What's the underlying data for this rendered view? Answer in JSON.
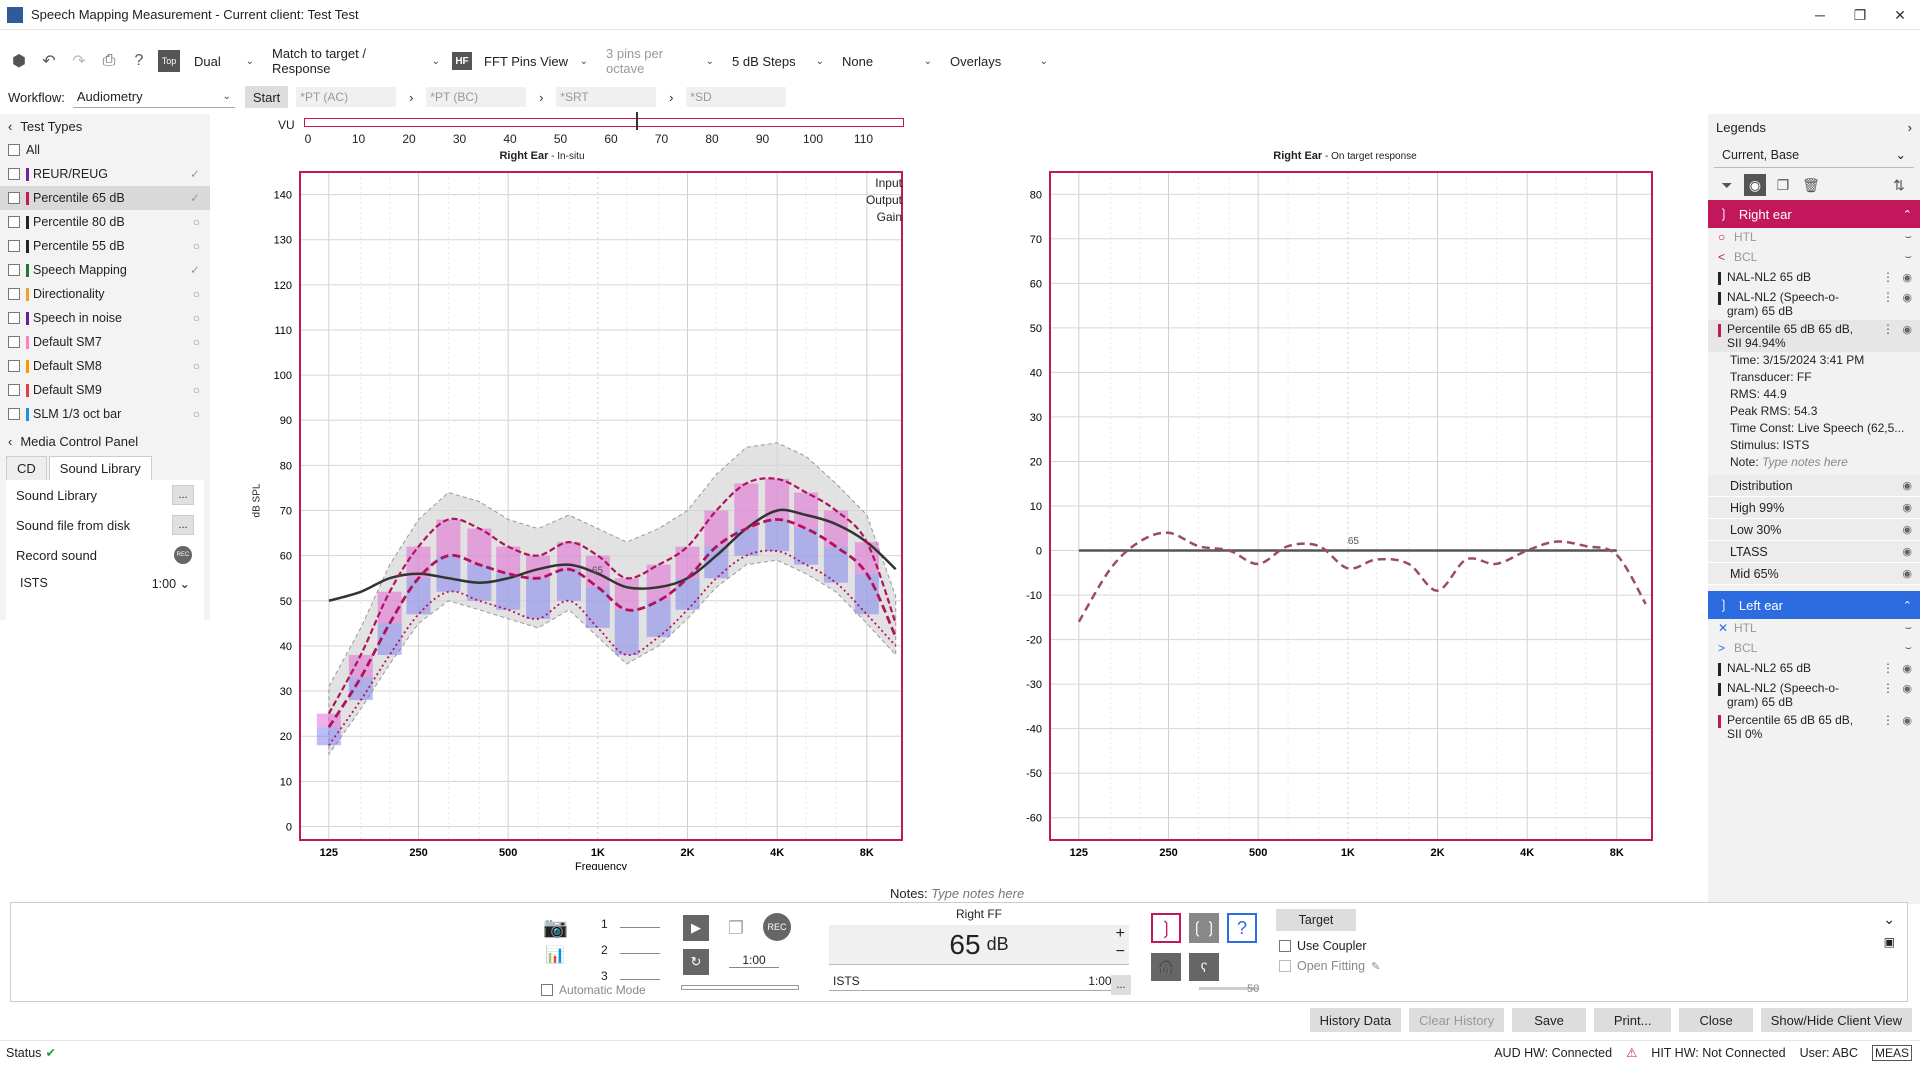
{
  "window": {
    "title": "Speech Mapping Measurement - Current client: Test Test"
  },
  "toolbar": {
    "mode": "Dual",
    "match": "Match to target / Response",
    "hf": "HF",
    "view": "FFT Pins View",
    "pins": "3 pins per octave",
    "steps": "5 dB Steps",
    "none": "None",
    "overlays": "Overlays"
  },
  "workflow": {
    "label": "Workflow:",
    "value": "Audiometry",
    "start": "Start",
    "steps": [
      "*PT (AC)",
      "*PT (BC)",
      "*SRT",
      "*SD"
    ]
  },
  "tests": {
    "header": "Test Types",
    "all": "All",
    "items": [
      {
        "label": "REUR/REUG",
        "color": "#7b1fa2",
        "status": "✓"
      },
      {
        "label": "Percentile 65 dB",
        "color": "#c2185b",
        "status": "✓"
      },
      {
        "label": "Percentile 80 dB",
        "color": "#222222",
        "status": "○"
      },
      {
        "label": "Percentile 55 dB",
        "color": "#222222",
        "status": "○"
      },
      {
        "label": "Speech Mapping",
        "color": "#1b7a3a",
        "status": "✓"
      },
      {
        "label": "Directionality",
        "color": "#f0a030",
        "status": "○"
      },
      {
        "label": "Speech in noise",
        "color": "#6a1b9a",
        "status": "○"
      },
      {
        "label": "Default SM7",
        "color": "#ff80c0",
        "status": "○"
      },
      {
        "label": "Default SM8",
        "color": "#ff9900",
        "status": "○"
      },
      {
        "label": "Default SM9",
        "color": "#e04040",
        "status": "○"
      },
      {
        "label": "SLM 1/3 oct bar",
        "color": "#2090e0",
        "status": "○"
      }
    ]
  },
  "media": {
    "header": "Media Control Panel",
    "tab_cd": "CD",
    "tab_lib": "Sound Library",
    "rows": [
      {
        "label": "Sound Library",
        "btn": "..."
      },
      {
        "label": "Sound file from disk",
        "btn": "..."
      },
      {
        "label": "Record sound",
        "btn": "REC"
      }
    ],
    "signal": "ISTS",
    "time": "1:00"
  },
  "vu": {
    "label": "VU",
    "ticks": [
      "0",
      "10",
      "20",
      "30",
      "40",
      "50",
      "60",
      "70",
      "80",
      "90",
      "100",
      "110"
    ],
    "level": 65
  },
  "left_chart": {
    "title_bold": "Right Ear",
    "title_rest": " - In-situ",
    "ylabel": "dB SPL",
    "xlabel": "Frequency",
    "legend": [
      "Input",
      "Output",
      "Gain"
    ],
    "yticks": [
      "140",
      "130",
      "120",
      "110",
      "100",
      "90",
      "80",
      "70",
      "60",
      "50",
      "40",
      "30",
      "20",
      "10",
      "0"
    ],
    "xticks": [
      "125",
      "250",
      "500",
      "1K",
      "2K",
      "4K",
      "8K"
    ],
    "marker": "65"
  },
  "right_chart": {
    "title_bold": "Right Ear",
    "title_rest": " - On target response",
    "yticks": [
      "80",
      "70",
      "60",
      "50",
      "40",
      "30",
      "20",
      "10",
      "0",
      "-10",
      "-20",
      "-30",
      "-40",
      "-50",
      "-60"
    ],
    "xticks": [
      "125",
      "250",
      "500",
      "1K",
      "2K",
      "4K",
      "8K"
    ],
    "marker": "65"
  },
  "chart_data": [
    {
      "type": "line",
      "title": "Right Ear - In-situ",
      "xlabel": "Frequency",
      "ylabel": "dB SPL",
      "x_scale": "log",
      "ylim": [
        0,
        145
      ],
      "x": [
        125,
        160,
        200,
        250,
        315,
        400,
        500,
        630,
        800,
        1000,
        1250,
        1600,
        2000,
        2500,
        3150,
        4000,
        5000,
        6300,
        8000,
        10000
      ],
      "series": [
        {
          "values": [
            50,
            52,
            55,
            56,
            55,
            54,
            55,
            57,
            58,
            56,
            53,
            53,
            55,
            60,
            66,
            70,
            69,
            67,
            63,
            57
          ]
        },
        {
          "values": [
            25,
            38,
            52,
            62,
            68,
            66,
            62,
            60,
            63,
            60,
            55,
            58,
            62,
            70,
            76,
            77,
            74,
            70,
            63,
            45
          ]
        },
        {
          "values": [
            22,
            33,
            45,
            55,
            60,
            58,
            56,
            55,
            57,
            53,
            48,
            50,
            55,
            62,
            66,
            68,
            66,
            62,
            56,
            42
          ]
        },
        {
          "values": [
            18,
            28,
            38,
            47,
            52,
            50,
            48,
            46,
            50,
            44,
            38,
            42,
            48,
            55,
            60,
            61,
            58,
            54,
            47,
            40
          ]
        }
      ]
    },
    {
      "type": "line",
      "title": "Right Ear - On target response",
      "ylim": [
        -65,
        85
      ],
      "x_scale": "log",
      "x": [
        125,
        160,
        200,
        250,
        315,
        400,
        500,
        630,
        800,
        1000,
        1250,
        1600,
        2000,
        2500,
        3150,
        4000,
        5000,
        6300,
        8000,
        10000
      ],
      "series": [
        {
          "values": [
            -16,
            -4,
            2,
            4,
            1,
            0,
            -3,
            1,
            1,
            -4,
            -2,
            -3,
            -9,
            -2,
            -3,
            0,
            2,
            1,
            -1,
            -12
          ]
        },
        {
          "values": [
            0,
            0,
            0,
            0,
            0,
            0,
            0,
            0,
            0,
            0,
            0,
            0,
            0,
            0,
            0,
            0,
            0,
            0,
            0,
            0
          ]
        }
      ]
    }
  ],
  "legends": {
    "header": "Legends",
    "selection": "Current, Base",
    "right_ear": {
      "label": "Right ear",
      "color": "#c2185b",
      "items": [
        {
          "mk": "○",
          "label": "HTL",
          "dim": true
        },
        {
          "mk": "<",
          "label": "BCL",
          "dim": true
        },
        {
          "sw": "#222",
          "label": "NAL-NL2 65 dB"
        },
        {
          "sw": "#222",
          "label": "NAL-NL2 (Speech-o-gram) 65 dB"
        },
        {
          "sw": "#c2185b",
          "label": "Percentile 65 dB 65 dB, SII 94.94%"
        }
      ],
      "details": [
        "Time: 3/15/2024 3:41 PM",
        "Transducer: FF",
        "RMS: 44.9",
        "Peak RMS: 54.3",
        "Time Const: Live Speech (62,5...",
        "Stimulus: ISTS"
      ],
      "note_label": "Note:",
      "note_placeholder": "Type notes here",
      "dist": [
        "Distribution",
        "High 99%",
        "Low 30%",
        "LTASS",
        "Mid 65%"
      ]
    },
    "left_ear": {
      "label": "Left ear",
      "color": "#2d6be0",
      "items": [
        {
          "mk": "✕",
          "label": "HTL",
          "dim": true
        },
        {
          "mk": ">",
          "label": "BCL",
          "dim": true
        },
        {
          "sw": "#222",
          "label": "NAL-NL2 65 dB"
        },
        {
          "sw": "#222",
          "label": "NAL-NL2 (Speech-o-gram) 65 dB"
        },
        {
          "sw": "#c2185b",
          "label": "Percentile 65 dB 65 dB, SII 0%"
        }
      ]
    }
  },
  "notes": {
    "label": "Notes:",
    "placeholder": "Type notes here"
  },
  "player": {
    "slots": [
      "1",
      "2",
      "3"
    ],
    "auto": "Automatic Mode",
    "time": "1:00",
    "rec": "REC",
    "channel": "Right FF",
    "level": "65",
    "unit": "dB",
    "signal": "ISTS",
    "signal_time": "1:00",
    "more": "...",
    "plus": "+",
    "minus": "−",
    "target": "Target",
    "use_coupler": "Use Coupler",
    "open_fitting": "Open Fitting",
    "vol": "50"
  },
  "buttons": {
    "history": "History Data",
    "clear": "Clear History",
    "save": "Save",
    "print": "Print...",
    "close": "Close",
    "toggle": "Show/Hide Client View"
  },
  "status": {
    "label": "Status",
    "aud": "AUD HW: Connected",
    "hit": "HIT HW: Not Connected",
    "user": "User: ABC",
    "meas": "MEAS"
  }
}
